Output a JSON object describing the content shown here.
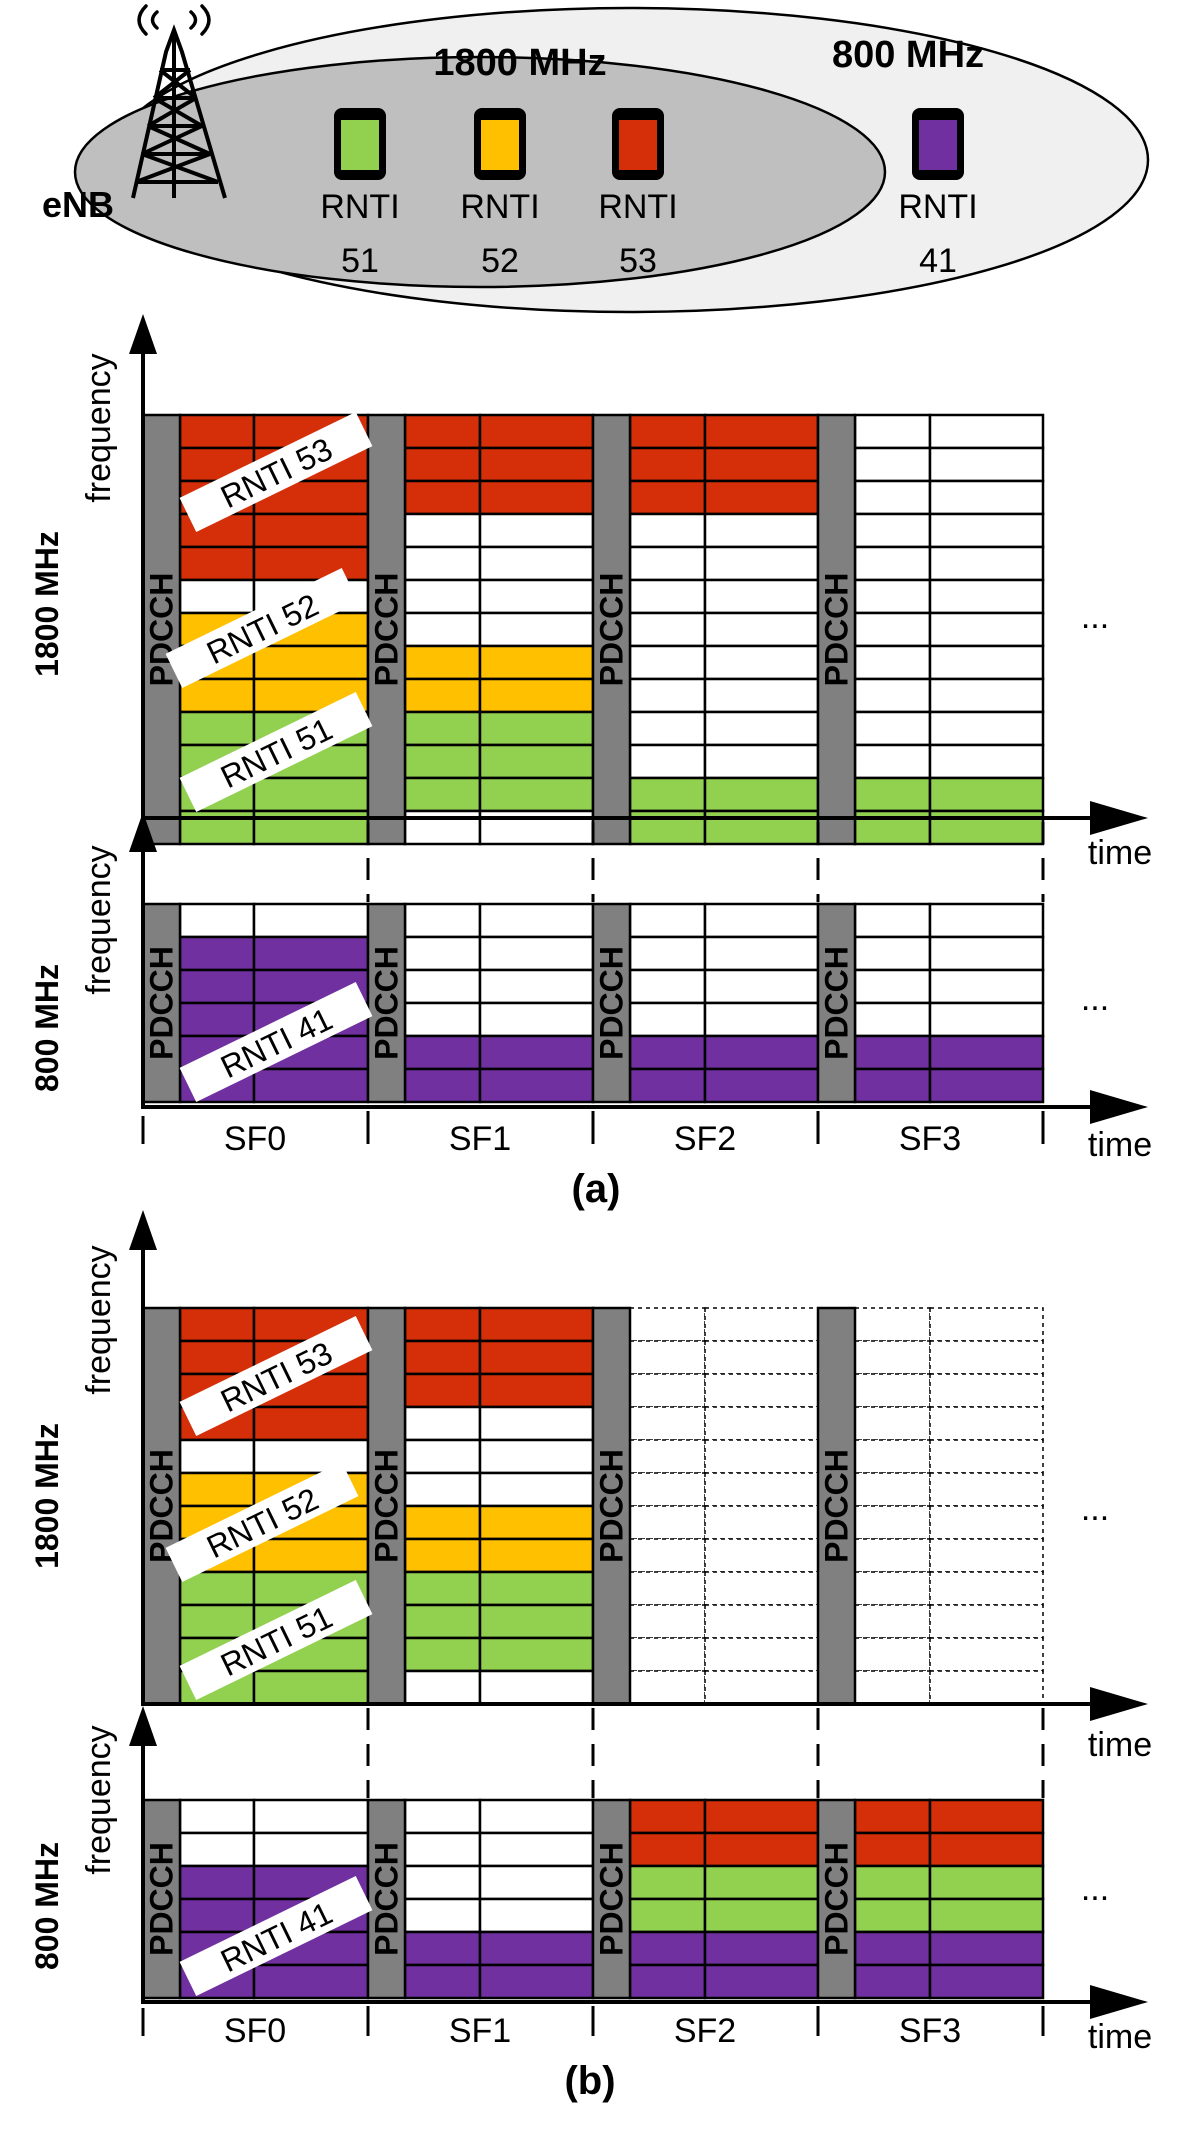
{
  "colors": {
    "red": "#d52f0a",
    "yellow": "#ffc000",
    "green": "#92d050",
    "purple": "#7030a0",
    "empty": "#ffffff",
    "pdcch": "#808080",
    "coverage_outer": "#f0f0f0",
    "coverage_inner": "#bfbfbf",
    "ink": "#000000"
  },
  "coverage": {
    "band_1800_label": "1800 MHz",
    "band_800_label": "800 MHz",
    "enb_label": "eNB",
    "ues": [
      {
        "rnti_text": "RNTI",
        "id": "51",
        "color": "green"
      },
      {
        "rnti_text": "RNTI",
        "id": "52",
        "color": "yellow"
      },
      {
        "rnti_text": "RNTI",
        "id": "53",
        "color": "red"
      },
      {
        "rnti_text": "RNTI",
        "id": "41",
        "color": "purple"
      }
    ]
  },
  "common": {
    "frequency_label": "frequency",
    "time_label": "time",
    "pdcch_label": "PDCCH",
    "ellipsis": "...",
    "band_1800": "1800 MHz",
    "band_800": "800 MHz",
    "subframes": [
      "SF0",
      "SF1",
      "SF2",
      "SF3"
    ]
  },
  "panels": [
    {
      "caption": "(a)",
      "grid_1800": [
        [
          "R",
          "R",
          "R",
          "R",
          "R",
          "W",
          "Y",
          "Y",
          "Y",
          "G",
          "G",
          "G",
          "G"
        ],
        [
          "R",
          "R",
          "R",
          "W",
          "W",
          "W",
          "W",
          "Y",
          "Y",
          "G",
          "G",
          "G",
          "W"
        ],
        [
          "R",
          "R",
          "R",
          "W",
          "W",
          "W",
          "W",
          "W",
          "W",
          "W",
          "W",
          "G",
          "G"
        ],
        [
          "W",
          "W",
          "W",
          "W",
          "W",
          "W",
          "W",
          "W",
          "W",
          "W",
          "W",
          "G",
          "G"
        ]
      ],
      "grid_1800_dashed": [
        false,
        false,
        false,
        false
      ],
      "grid_800": [
        [
          "W",
          "P",
          "P",
          "P",
          "P",
          "P"
        ],
        [
          "W",
          "W",
          "W",
          "W",
          "P",
          "P"
        ],
        [
          "W",
          "W",
          "W",
          "W",
          "P",
          "P"
        ],
        [
          "W",
          "W",
          "W",
          "W",
          "P",
          "P"
        ]
      ],
      "labels_1800": [
        "RNTI 53",
        "RNTI 52",
        "RNTI 51"
      ],
      "label_800": "RNTI 41"
    },
    {
      "caption": "(b)",
      "grid_1800": [
        [
          "R",
          "R",
          "R",
          "R",
          "W",
          "Y",
          "Y",
          "Y",
          "G",
          "G",
          "G",
          "G"
        ],
        [
          "R",
          "R",
          "R",
          "W",
          "W",
          "W",
          "Y",
          "Y",
          "G",
          "G",
          "G",
          "W"
        ],
        [
          "W",
          "W",
          "W",
          "W",
          "W",
          "W",
          "W",
          "W",
          "W",
          "W",
          "W",
          "W"
        ],
        [
          "W",
          "W",
          "W",
          "W",
          "W",
          "W",
          "W",
          "W",
          "W",
          "W",
          "W",
          "W"
        ]
      ],
      "grid_1800_dashed": [
        false,
        false,
        true,
        true
      ],
      "grid_800": [
        [
          "W",
          "W",
          "P",
          "P",
          "P",
          "P"
        ],
        [
          "W",
          "W",
          "W",
          "W",
          "P",
          "P"
        ],
        [
          "R",
          "R",
          "G",
          "G",
          "P",
          "P"
        ],
        [
          "R",
          "R",
          "G",
          "G",
          "P",
          "P"
        ]
      ],
      "labels_1800": [
        "RNTI 53",
        "RNTI 52",
        "RNTI 51"
      ],
      "label_800": "RNTI 41"
    }
  ]
}
